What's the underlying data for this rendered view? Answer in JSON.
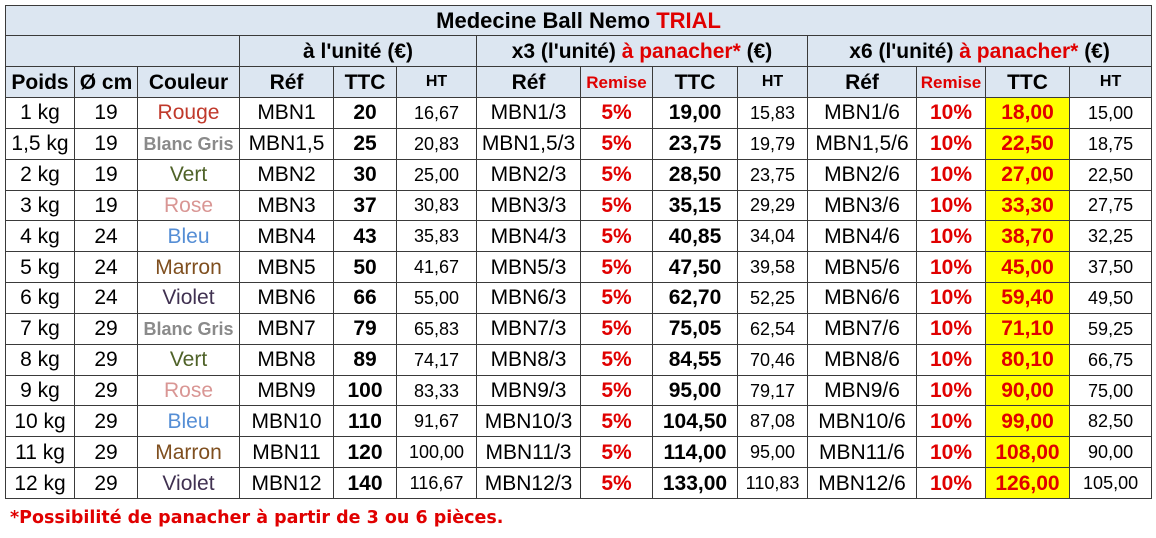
{
  "title": {
    "main": "Medecine Ball Nemo ",
    "accent": "TRIAL"
  },
  "groups": {
    "unit": "à l'unité (€)",
    "x3": {
      "prefix": "x3 (l'unité) ",
      "accent": "à panacher*",
      "suffix": " (€)"
    },
    "x6": {
      "prefix": "x6 (l'unité) ",
      "accent": "à panacher*",
      "suffix": " (€)"
    }
  },
  "headers": {
    "poids": "Poids",
    "diam": "Ø cm",
    "couleur": "Couleur",
    "ref": "Réf",
    "ttc": "TTC",
    "ht": "HT",
    "remise": "Remise"
  },
  "colors": {
    "Rouge": "#c0392b",
    "Blanc Gris": "#8a8a8a",
    "Vert": "#4f6228",
    "Rose": "#d99694",
    "Bleu": "#558ed5",
    "Marron": "#7f4f1f",
    "Violet": "#403151",
    "header_bg": "#dce6f1",
    "accent_red": "#e00000",
    "highlight": "#ffff00"
  },
  "rows": [
    {
      "poids": "1 kg",
      "diam": "19",
      "couleur": "Rouge",
      "ref1": "MBN1",
      "ttc1": "20",
      "ht1": "16,67",
      "ref3": "MBN1/3",
      "rem3": "5%",
      "ttc3": "19,00",
      "ht3": "15,83",
      "ref6": "MBN1/6",
      "rem6": "10%",
      "ttc6": "18,00",
      "ht6": "15,00"
    },
    {
      "poids": "1,5 kg",
      "diam": "19",
      "couleur": "Blanc Gris",
      "ref1": "MBN1,5",
      "ttc1": "25",
      "ht1": "20,83",
      "ref3": "MBN1,5/3",
      "rem3": "5%",
      "ttc3": "23,75",
      "ht3": "19,79",
      "ref6": "MBN1,5/6",
      "rem6": "10%",
      "ttc6": "22,50",
      "ht6": "18,75"
    },
    {
      "poids": "2 kg",
      "diam": "19",
      "couleur": "Vert",
      "ref1": "MBN2",
      "ttc1": "30",
      "ht1": "25,00",
      "ref3": "MBN2/3",
      "rem3": "5%",
      "ttc3": "28,50",
      "ht3": "23,75",
      "ref6": "MBN2/6",
      "rem6": "10%",
      "ttc6": "27,00",
      "ht6": "22,50"
    },
    {
      "poids": "3 kg",
      "diam": "19",
      "couleur": "Rose",
      "ref1": "MBN3",
      "ttc1": "37",
      "ht1": "30,83",
      "ref3": "MBN3/3",
      "rem3": "5%",
      "ttc3": "35,15",
      "ht3": "29,29",
      "ref6": "MBN3/6",
      "rem6": "10%",
      "ttc6": "33,30",
      "ht6": "27,75"
    },
    {
      "poids": "4 kg",
      "diam": "24",
      "couleur": "Bleu",
      "ref1": "MBN4",
      "ttc1": "43",
      "ht1": "35,83",
      "ref3": "MBN4/3",
      "rem3": "5%",
      "ttc3": "40,85",
      "ht3": "34,04",
      "ref6": "MBN4/6",
      "rem6": "10%",
      "ttc6": "38,70",
      "ht6": "32,25"
    },
    {
      "poids": "5 kg",
      "diam": "24",
      "couleur": "Marron",
      "ref1": "MBN5",
      "ttc1": "50",
      "ht1": "41,67",
      "ref3": "MBN5/3",
      "rem3": "5%",
      "ttc3": "47,50",
      "ht3": "39,58",
      "ref6": "MBN5/6",
      "rem6": "10%",
      "ttc6": "45,00",
      "ht6": "37,50"
    },
    {
      "poids": "6 kg",
      "diam": "24",
      "couleur": "Violet",
      "ref1": "MBN6",
      "ttc1": "66",
      "ht1": "55,00",
      "ref3": "MBN6/3",
      "rem3": "5%",
      "ttc3": "62,70",
      "ht3": "52,25",
      "ref6": "MBN6/6",
      "rem6": "10%",
      "ttc6": "59,40",
      "ht6": "49,50"
    },
    {
      "poids": "7 kg",
      "diam": "29",
      "couleur": "Blanc Gris",
      "ref1": "MBN7",
      "ttc1": "79",
      "ht1": "65,83",
      "ref3": "MBN7/3",
      "rem3": "5%",
      "ttc3": "75,05",
      "ht3": "62,54",
      "ref6": "MBN7/6",
      "rem6": "10%",
      "ttc6": "71,10",
      "ht6": "59,25"
    },
    {
      "poids": "8 kg",
      "diam": "29",
      "couleur": "Vert",
      "ref1": "MBN8",
      "ttc1": "89",
      "ht1": "74,17",
      "ref3": "MBN8/3",
      "rem3": "5%",
      "ttc3": "84,55",
      "ht3": "70,46",
      "ref6": "MBN8/6",
      "rem6": "10%",
      "ttc6": "80,10",
      "ht6": "66,75"
    },
    {
      "poids": "9 kg",
      "diam": "29",
      "couleur": "Rose",
      "ref1": "MBN9",
      "ttc1": "100",
      "ht1": "83,33",
      "ref3": "MBN9/3",
      "rem3": "5%",
      "ttc3": "95,00",
      "ht3": "79,17",
      "ref6": "MBN9/6",
      "rem6": "10%",
      "ttc6": "90,00",
      "ht6": "75,00"
    },
    {
      "poids": "10 kg",
      "diam": "29",
      "couleur": "Bleu",
      "ref1": "MBN10",
      "ttc1": "110",
      "ht1": "91,67",
      "ref3": "MBN10/3",
      "rem3": "5%",
      "ttc3": "104,50",
      "ht3": "87,08",
      "ref6": "MBN10/6",
      "rem6": "10%",
      "ttc6": "99,00",
      "ht6": "82,50"
    },
    {
      "poids": "11 kg",
      "diam": "29",
      "couleur": "Marron",
      "ref1": "MBN11",
      "ttc1": "120",
      "ht1": "100,00",
      "ref3": "MBN11/3",
      "rem3": "5%",
      "ttc3": "114,00",
      "ht3": "95,00",
      "ref6": "MBN11/6",
      "rem6": "10%",
      "ttc6": "108,00",
      "ht6": "90,00"
    },
    {
      "poids": "12 kg",
      "diam": "29",
      "couleur": "Violet",
      "ref1": "MBN12",
      "ttc1": "140",
      "ht1": "116,67",
      "ref3": "MBN12/3",
      "rem3": "5%",
      "ttc3": "133,00",
      "ht3": "110,83",
      "ref6": "MBN12/6",
      "rem6": "10%",
      "ttc6": "126,00",
      "ht6": "105,00"
    }
  ],
  "footnote": "*Possibilité de panacher à partir de 3 ou 6 pièces."
}
